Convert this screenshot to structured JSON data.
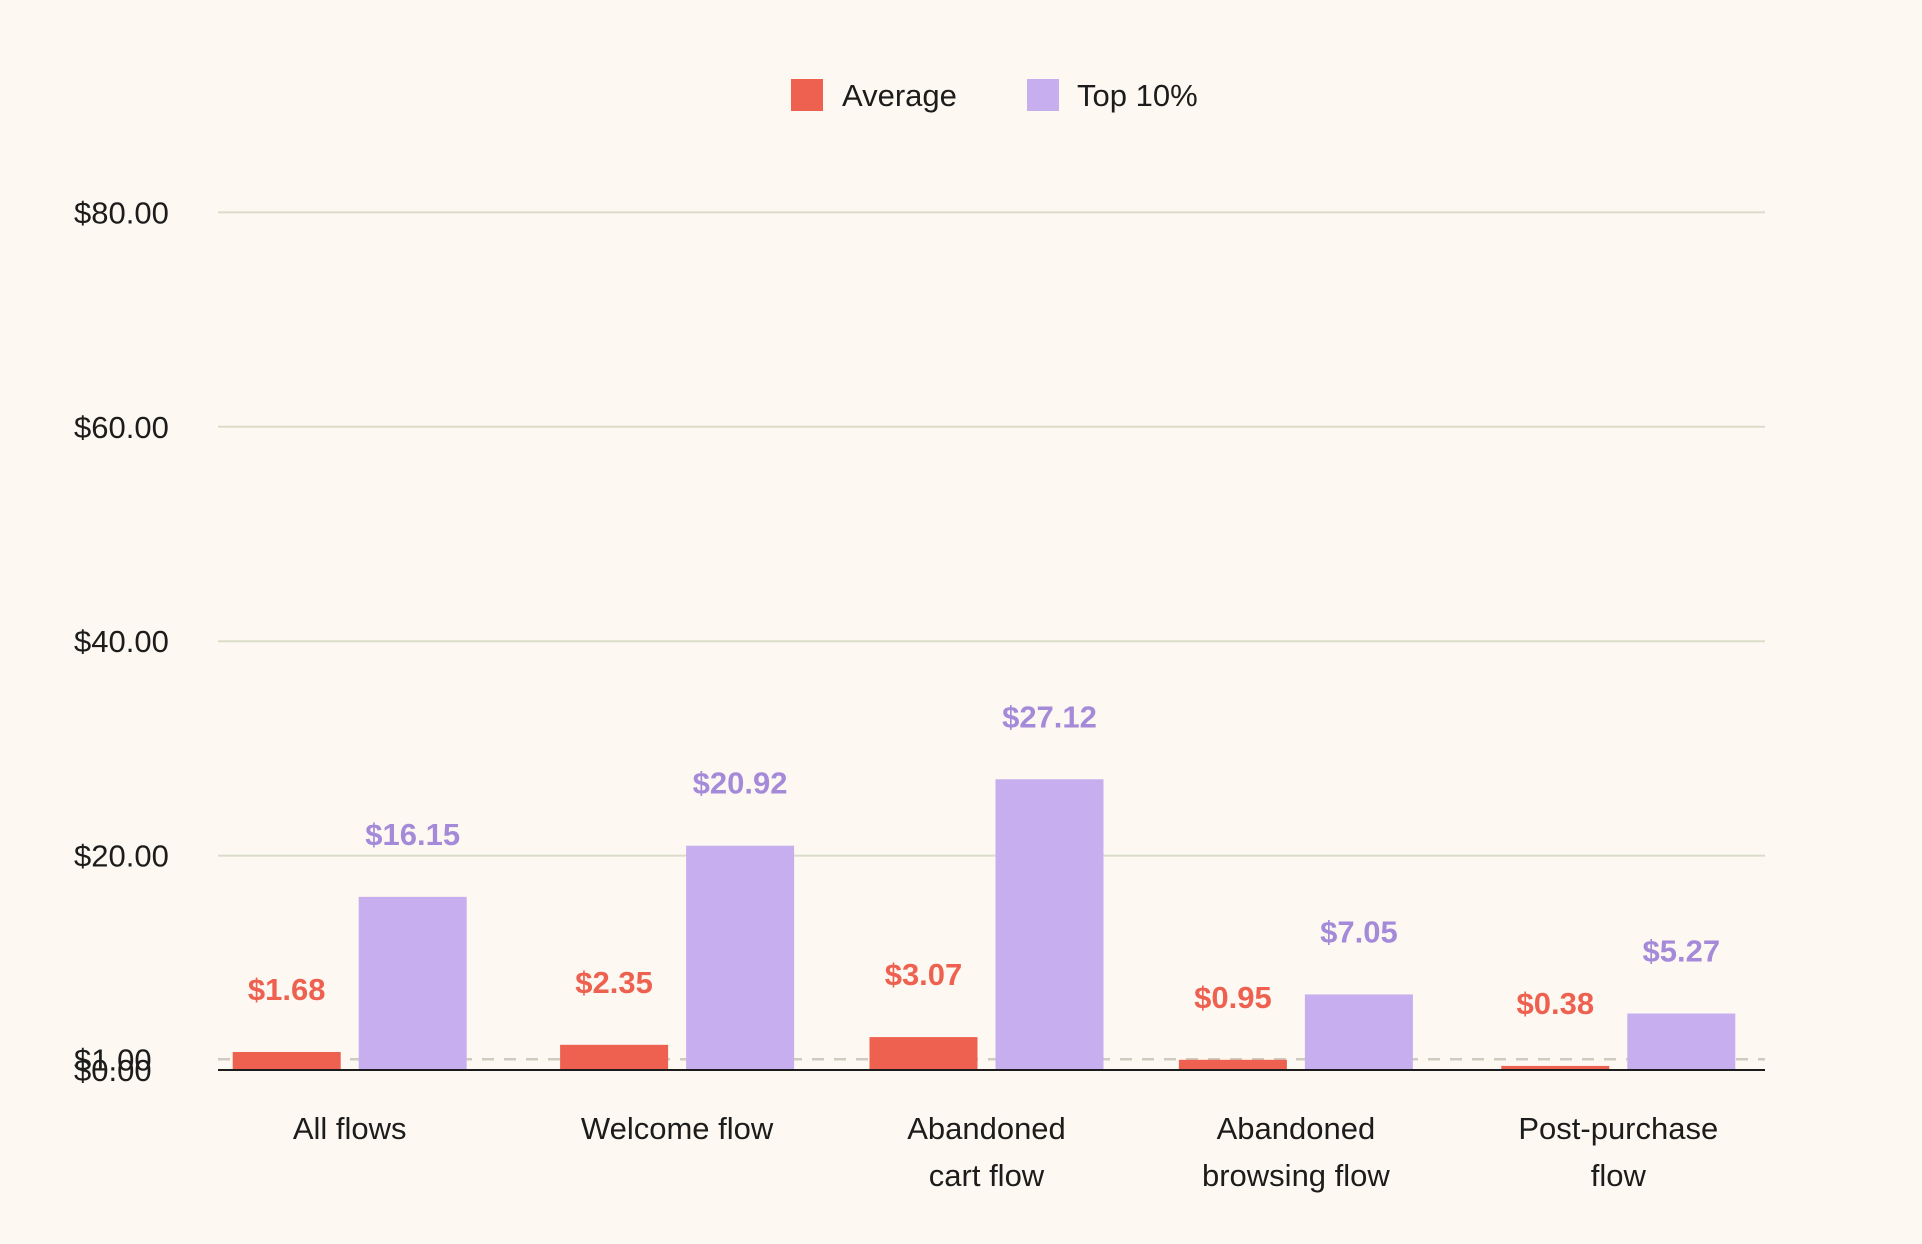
{
  "chart_data": {
    "type": "bar",
    "categories": [
      [
        "All flows"
      ],
      [
        "Welcome flow"
      ],
      [
        "Abandoned",
        "cart flow"
      ],
      [
        "Abandoned",
        "browsing flow"
      ],
      [
        "Post-purchase",
        "flow"
      ]
    ],
    "series": [
      {
        "name": "Average",
        "color": "#ee6150",
        "values": [
          1.68,
          2.35,
          3.07,
          0.95,
          0.38
        ],
        "labels": [
          "$1.68",
          "$2.35",
          "$3.07",
          "$0.95",
          "$0.38"
        ]
      },
      {
        "name": "Top 10%",
        "color": "#c7aeee",
        "label_color": "#a48ad8",
        "values": [
          16.15,
          20.92,
          27.12,
          7.05,
          5.27
        ],
        "labels": [
          "$16.15",
          "$20.92",
          "$27.12",
          "$7.05",
          "$5.27"
        ]
      }
    ],
    "y_ticks": [
      {
        "value": 80,
        "label": "$80.00"
      },
      {
        "value": 60,
        "label": "$60.00"
      },
      {
        "value": 40,
        "label": "$40.00"
      },
      {
        "value": 20,
        "label": "$20.00"
      },
      {
        "value": 1,
        "label": "$1.00"
      },
      {
        "value": 0,
        "label": "$0.00"
      }
    ],
    "reference_line": {
      "value": 1,
      "style": "dashed"
    },
    "ylim": [
      0,
      80
    ],
    "grid": true,
    "legend_position": "top-center",
    "title": "",
    "xlabel": "",
    "ylabel": ""
  }
}
